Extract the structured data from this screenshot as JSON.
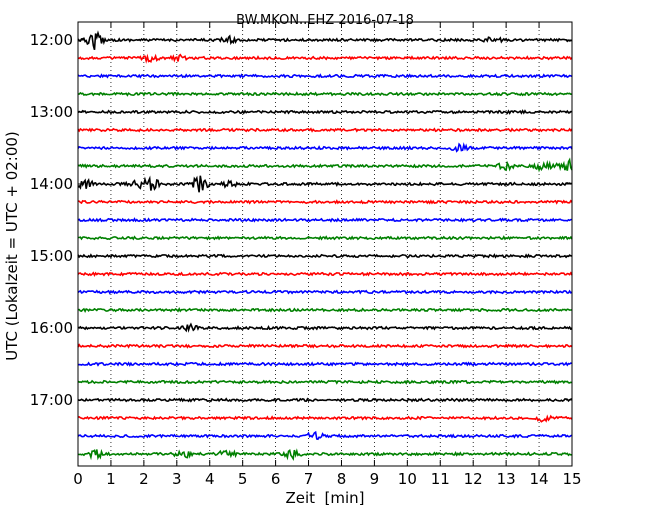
{
  "chart_data": {
    "type": "line",
    "title": "BW.MKON..EHZ 2016-07-18",
    "xlabel": "Zeit  [min]",
    "ylabel": "UTC (Lokalzeit = UTC + 02:00)",
    "xlim": [
      0,
      15
    ],
    "xticks": [
      "0",
      "1",
      "2",
      "3",
      "4",
      "5",
      "6",
      "7",
      "8",
      "9",
      "10",
      "11",
      "12",
      "13",
      "14",
      "15"
    ],
    "yticks": [
      "12:00",
      "13:00",
      "14:00",
      "15:00",
      "16:00",
      "17:00"
    ],
    "grid": "vertical dotted",
    "trace_interval_minutes": 15,
    "trace_start": "12:00",
    "trace_count": 24,
    "trace_colors": [
      "#000000",
      "#ff0000",
      "#0000ff",
      "#008000"
    ],
    "events": [
      {
        "trace": 0,
        "minute": 0.5,
        "amplitude": 0.9
      },
      {
        "trace": 0,
        "minute": 4.6,
        "amplitude": 0.3
      },
      {
        "trace": 0,
        "minute": 12.6,
        "amplitude": 0.3
      },
      {
        "trace": 1,
        "minute": 2.2,
        "amplitude": 0.3
      },
      {
        "trace": 1,
        "minute": 3.1,
        "amplitude": 0.3
      },
      {
        "trace": 6,
        "minute": 11.6,
        "amplitude": 0.4
      },
      {
        "trace": 7,
        "minute": 13.0,
        "amplitude": 0.4
      },
      {
        "trace": 7,
        "minute": 14.1,
        "amplitude": 0.5
      },
      {
        "trace": 7,
        "minute": 14.8,
        "amplitude": 0.9
      },
      {
        "trace": 8,
        "minute": 0.2,
        "amplitude": 0.5
      },
      {
        "trace": 8,
        "minute": 1.8,
        "amplitude": 0.5
      },
      {
        "trace": 8,
        "minute": 2.2,
        "amplitude": 0.7
      },
      {
        "trace": 8,
        "minute": 3.7,
        "amplitude": 0.8
      },
      {
        "trace": 8,
        "minute": 4.6,
        "amplitude": 0.5
      },
      {
        "trace": 16,
        "minute": 3.4,
        "amplitude": 0.3
      },
      {
        "trace": 21,
        "minute": 14.1,
        "amplitude": 0.3
      },
      {
        "trace": 22,
        "minute": 7.2,
        "amplitude": 0.4
      },
      {
        "trace": 23,
        "minute": 0.5,
        "amplitude": 0.5
      },
      {
        "trace": 23,
        "minute": 3.2,
        "amplitude": 0.4
      },
      {
        "trace": 23,
        "minute": 4.5,
        "amplitude": 0.4
      },
      {
        "trace": 23,
        "minute": 6.5,
        "amplitude": 0.4
      }
    ]
  }
}
